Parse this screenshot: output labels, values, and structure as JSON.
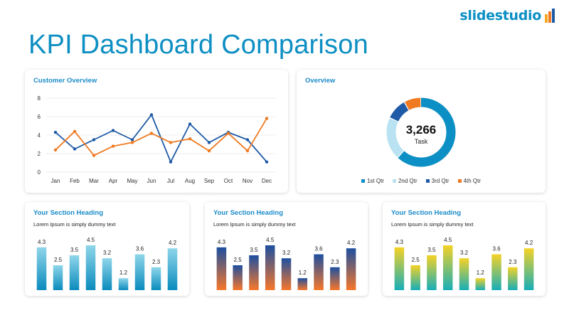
{
  "logo": {
    "text": "slidestudio"
  },
  "title": "KPI Dashboard Comparison",
  "panels": {
    "customer": {
      "title": "Customer Overview"
    },
    "overview": {
      "title": "Overview",
      "center_value": "3,266",
      "center_label": "Task",
      "legend": [
        "1st Qtr",
        "2nd Qtr",
        "3rd Qtr",
        "4th Qtr"
      ]
    },
    "section1": {
      "title": "Your Section Heading",
      "subtitle": "Lorem Ipsum is simply dummy text"
    },
    "section2": {
      "title": "Your Section Heading",
      "subtitle": "Lorem Ipsum is simply dummy text"
    },
    "section3": {
      "title": "Your Section Heading",
      "subtitle": "Lorem Ipsum is simply dummy text"
    }
  },
  "colors": {
    "brand": "#0e8fc3",
    "series_blue": "#1f5aa6",
    "series_orange": "#f07a22",
    "donut": [
      "#0b8fc4",
      "#b9e3f2",
      "#1f5aa6",
      "#f07a22"
    ],
    "logo_bars": [
      "#f5a623",
      "#f07a22",
      "#1f5aa6"
    ]
  },
  "chart_data": [
    {
      "type": "line",
      "categories": [
        "Jan",
        "Feb",
        "Mar",
        "Apr",
        "May",
        "Jun",
        "Jul",
        "Aug",
        "Sep",
        "Oct",
        "Nov",
        "Dec"
      ],
      "series": [
        {
          "values": [
            4.3,
            2.5,
            3.5,
            4.5,
            3.5,
            6.2,
            1.1,
            5.2,
            3.2,
            4.3,
            3.5,
            1.1
          ]
        },
        {
          "values": [
            2.4,
            4.4,
            1.8,
            2.8,
            3.2,
            4.2,
            3.2,
            3.6,
            2.3,
            4.2,
            2.3,
            5.8
          ]
        }
      ],
      "ylim": [
        0,
        8
      ],
      "yticks": [
        0,
        2,
        4,
        6,
        8
      ],
      "grid": true
    },
    {
      "type": "pie",
      "categories": [
        "1st Qtr",
        "2nd Qtr",
        "3rd Qtr",
        "4th Qtr"
      ],
      "values": [
        62,
        20,
        10,
        8
      ]
    },
    {
      "type": "bar",
      "values": [
        4.3,
        2.5,
        3.5,
        4.5,
        3.2,
        1.2,
        3.6,
        2.3,
        4.2
      ],
      "ylim": [
        0,
        5
      ]
    },
    {
      "type": "bar",
      "values": [
        4.3,
        2.5,
        3.5,
        4.5,
        3.2,
        1.2,
        3.6,
        2.3,
        4.2
      ],
      "ylim": [
        0,
        5
      ]
    },
    {
      "type": "bar",
      "values": [
        4.3,
        2.5,
        3.5,
        4.5,
        3.2,
        1.2,
        3.6,
        2.3,
        4.2
      ],
      "ylim": [
        0,
        5
      ]
    }
  ]
}
